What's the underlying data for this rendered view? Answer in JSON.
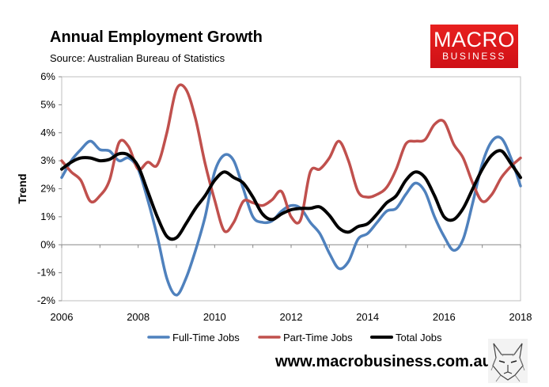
{
  "header": {
    "title": "Annual Employment Growth",
    "subtitle": "Source: Australian Bureau of Statistics"
  },
  "logo": {
    "line1": "MACRO",
    "line2": "BUSINESS",
    "color": "#e01a1f"
  },
  "footer": {
    "website": "www.macrobusiness.com.au",
    "mascot_icon": "fox-sketch-icon"
  },
  "chart_data": {
    "type": "line",
    "title": "Annual Employment Growth",
    "subtitle": "Source: Australian Bureau of Statistics",
    "ylabel": "Trend",
    "xlabel": "",
    "xlim": [
      2006,
      2018
    ],
    "ylim": [
      -2,
      6
    ],
    "x_ticks": [
      2006,
      2008,
      2010,
      2012,
      2014,
      2016,
      2018
    ],
    "y_ticks": [
      {
        "value": 6,
        "label": "6%"
      },
      {
        "value": 5,
        "label": "5%"
      },
      {
        "value": 4,
        "label": "4%"
      },
      {
        "value": 3,
        "label": "3%"
      },
      {
        "value": 2,
        "label": "2%"
      },
      {
        "value": 1,
        "label": "1%"
      },
      {
        "value": 0,
        "label": "0%"
      },
      {
        "value": -1,
        "label": "-1%"
      },
      {
        "value": -2,
        "label": "-2%"
      }
    ],
    "grid": false,
    "legend_position": "bottom",
    "series": [
      {
        "name": "Full-Time Jobs",
        "color": "#4f81bd",
        "x": [
          2006.0,
          2006.25,
          2006.5,
          2006.75,
          2007.0,
          2007.25,
          2007.5,
          2007.75,
          2008.0,
          2008.25,
          2008.5,
          2008.75,
          2009.0,
          2009.25,
          2009.5,
          2009.75,
          2010.0,
          2010.25,
          2010.5,
          2010.75,
          2011.0,
          2011.25,
          2011.5,
          2011.75,
          2012.0,
          2012.25,
          2012.5,
          2012.75,
          2013.0,
          2013.25,
          2013.5,
          2013.75,
          2014.0,
          2014.25,
          2014.5,
          2014.75,
          2015.0,
          2015.25,
          2015.5,
          2015.75,
          2016.0,
          2016.25,
          2016.5,
          2016.75,
          2017.0,
          2017.25,
          2017.5,
          2017.75,
          2018.0
        ],
        "values": [
          2.4,
          3.0,
          3.4,
          3.7,
          3.4,
          3.35,
          3.0,
          3.1,
          2.7,
          1.6,
          0.3,
          -1.2,
          -1.8,
          -1.2,
          -0.2,
          1.0,
          2.6,
          3.2,
          3.0,
          2.0,
          1.0,
          0.8,
          0.85,
          1.2,
          1.4,
          1.3,
          0.8,
          0.4,
          -0.3,
          -0.85,
          -0.6,
          0.2,
          0.4,
          0.8,
          1.2,
          1.3,
          1.8,
          2.2,
          1.9,
          1.0,
          0.3,
          -0.2,
          0.2,
          1.5,
          2.9,
          3.7,
          3.8,
          3.1,
          2.1
        ]
      },
      {
        "name": "Part-Time Jobs",
        "color": "#c0504d",
        "x": [
          2006.0,
          2006.25,
          2006.5,
          2006.75,
          2007.0,
          2007.25,
          2007.5,
          2007.75,
          2008.0,
          2008.25,
          2008.5,
          2008.75,
          2009.0,
          2009.25,
          2009.5,
          2009.75,
          2010.0,
          2010.25,
          2010.5,
          2010.75,
          2011.0,
          2011.25,
          2011.5,
          2011.75,
          2012.0,
          2012.25,
          2012.5,
          2012.75,
          2013.0,
          2013.25,
          2013.5,
          2013.75,
          2014.0,
          2014.25,
          2014.5,
          2014.75,
          2015.0,
          2015.25,
          2015.5,
          2015.75,
          2016.0,
          2016.25,
          2016.5,
          2016.75,
          2017.0,
          2017.25,
          2017.5,
          2017.75,
          2018.0
        ],
        "values": [
          3.0,
          2.6,
          2.3,
          1.55,
          1.75,
          2.3,
          3.65,
          3.5,
          2.7,
          2.95,
          2.85,
          4.0,
          5.55,
          5.55,
          4.5,
          2.9,
          1.6,
          0.5,
          0.8,
          1.55,
          1.5,
          1.4,
          1.6,
          1.9,
          1.0,
          0.9,
          2.6,
          2.7,
          3.1,
          3.7,
          3.0,
          1.9,
          1.7,
          1.8,
          2.05,
          2.7,
          3.6,
          3.7,
          3.75,
          4.3,
          4.4,
          3.6,
          3.1,
          2.2,
          1.55,
          1.8,
          2.4,
          2.8,
          3.1
        ]
      },
      {
        "name": "Total Jobs",
        "color": "#000000",
        "x": [
          2006.0,
          2006.25,
          2006.5,
          2006.75,
          2007.0,
          2007.25,
          2007.5,
          2007.75,
          2008.0,
          2008.25,
          2008.5,
          2008.75,
          2009.0,
          2009.25,
          2009.5,
          2009.75,
          2010.0,
          2010.25,
          2010.5,
          2010.75,
          2011.0,
          2011.25,
          2011.5,
          2011.75,
          2012.0,
          2012.25,
          2012.5,
          2012.75,
          2013.0,
          2013.25,
          2013.5,
          2013.75,
          2014.0,
          2014.25,
          2014.5,
          2014.75,
          2015.0,
          2015.25,
          2015.5,
          2015.75,
          2016.0,
          2016.25,
          2016.5,
          2016.75,
          2017.0,
          2017.25,
          2017.5,
          2017.75,
          2018.0
        ],
        "values": [
          2.7,
          2.95,
          3.1,
          3.1,
          3.0,
          3.05,
          3.25,
          3.2,
          2.8,
          1.9,
          1.0,
          0.3,
          0.25,
          0.75,
          1.3,
          1.75,
          2.3,
          2.6,
          2.4,
          2.2,
          1.7,
          1.1,
          0.9,
          1.1,
          1.25,
          1.3,
          1.3,
          1.35,
          1.05,
          0.6,
          0.45,
          0.65,
          0.75,
          1.1,
          1.5,
          1.75,
          2.3,
          2.6,
          2.4,
          1.75,
          1.0,
          0.9,
          1.3,
          2.0,
          2.7,
          3.2,
          3.35,
          2.9,
          2.4
        ]
      }
    ]
  }
}
